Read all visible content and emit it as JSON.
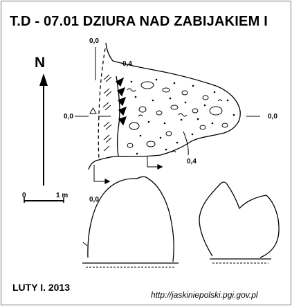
{
  "title": "T.D - 07.01  DZIURA NAD ZABIJAKIEM I",
  "north": "N",
  "scale": {
    "start": "0",
    "end": "1 m"
  },
  "depths": {
    "top": "0,0",
    "upper_inner": "0,4",
    "left": "0,0",
    "right": "0,0",
    "lower_inner": "0,4",
    "bottom": "0,0"
  },
  "date": "LUTY I. 2013",
  "url": "http://jaskiniepolski.pgi.gov.pl"
}
